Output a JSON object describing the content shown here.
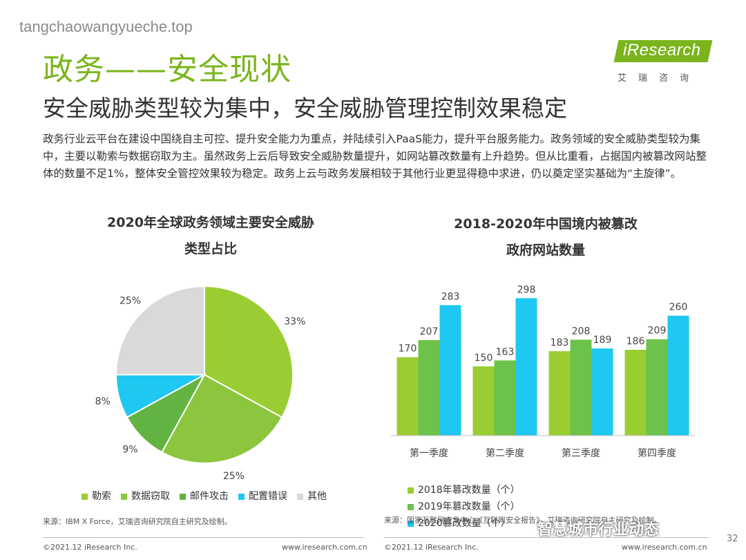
{
  "watermark": "tangchaowangyueche.top",
  "logo": {
    "text": "iResearch",
    "sub": "艾瑞咨询"
  },
  "title": "政务——安全现状",
  "subtitle": "安全威胁类型较为集中，安全威胁管理控制效果稳定",
  "intro": "政务行业云平台在建设中国绕自主可控、提升安全能力为重点，并陆续引入PaaS能力，提升平台服务能力。政务领域的安全威胁类型较为集中，主要以勒索与数据窃取为主。虽然政务上云后导致安全威胁数量提升，如网站篡改数量有上升趋势。但从比重看，占据国内被篡改网站整体的数量不足1%，整体安全管控效果较为稳定。政务上云与政务发展相较于其他行业更显得稳中求进，仍以奠定坚实基础为“主旋律”。",
  "colors": {
    "accent": "#7ab51d",
    "s2018": "#9acd32",
    "s2019": "#6cc24a",
    "s2020": "#1ec8f0"
  },
  "chart_data": [
    {
      "type": "pie",
      "title": "2020年全球政务领域主要安全威胁类型占比",
      "title_line1": "2020年全球政务领域主要安全威胁",
      "title_line2": "类型占比",
      "slices": [
        {
          "label": "勒索",
          "value": 33,
          "display": "33%",
          "color": "#9acd32"
        },
        {
          "label": "数据窃取",
          "value": 25,
          "display": "25%",
          "color": "#8cc63f"
        },
        {
          "label": "邮件攻击",
          "value": 9,
          "display": "9%",
          "color": "#63b342"
        },
        {
          "label": "配置错误",
          "value": 8,
          "display": "8%",
          "color": "#1ec8f0"
        },
        {
          "label": "其他",
          "value": 25,
          "display": "25%",
          "color": "#d9d9d9"
        }
      ],
      "source": "来源：IBM X Force，艾瑞咨询研究院自主研究及绘制。"
    },
    {
      "type": "bar",
      "title": "2018-2020年中国境内被篡改政府网站数量",
      "title_line1": "2018-2020年中国境内被篡改",
      "title_line2": "政府网站数量",
      "categories": [
        "第一季度",
        "第二季度",
        "第三季度",
        "第四季度"
      ],
      "series": [
        {
          "name": "2018年篡改数量（个）",
          "values": [
            170,
            150,
            183,
            186
          ],
          "color": "#9acd32"
        },
        {
          "name": "2019年篡改数量（个）",
          "values": [
            207,
            163,
            208,
            209
          ],
          "color": "#6cc24a"
        },
        {
          "name": "2020篡改数量（个）",
          "values": [
            283,
            298,
            189,
            260
          ],
          "color": "#1ec8f0"
        }
      ],
      "ylim": [
        0,
        330
      ],
      "source": "来源：国家互联网应急中心《互联网安全报告》，艾瑞咨询研究院自主研究及绘制。"
    }
  ],
  "footer": {
    "copyright": "©2021.12 iResearch Inc.",
    "url": "www.iresearch.com.cn",
    "page": "32"
  },
  "stamp": "智慧城市行业动态"
}
